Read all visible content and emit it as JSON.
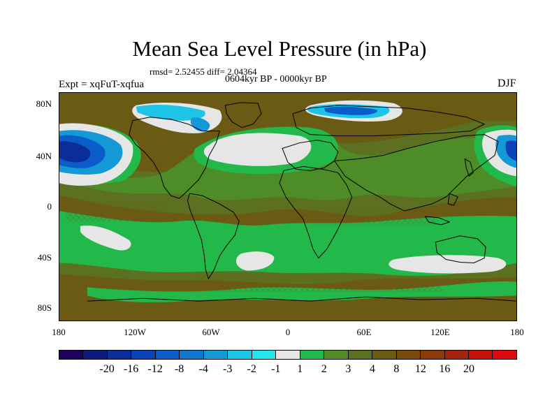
{
  "title": "Mean Sea Level Pressure (in hPa)",
  "stats": "rmsd= 2.52455 diff= 2.04364",
  "period": "0604kyr BP - 0000kyr BP",
  "experiment": "Expt = xqFuT-xqfua",
  "season": "DJF",
  "y_ticks": [
    "80N",
    "40N",
    "0",
    "40S",
    "80S"
  ],
  "x_ticks": [
    "180",
    "120W",
    "60W",
    "0",
    "60E",
    "120E",
    "180"
  ],
  "colorbar": {
    "colors": [
      "#1f0060",
      "#0a1a80",
      "#0a2d9a",
      "#0a43b5",
      "#0a5cc8",
      "#1077cf",
      "#1598d6",
      "#1ec4e6",
      "#25e6ec",
      "#e6e6e6",
      "#22b84a",
      "#4d8c26",
      "#5b7020",
      "#6a5a14",
      "#7a4a0c",
      "#8c3a0a",
      "#a3240a",
      "#c4140a",
      "#dc0a0a"
    ],
    "labels": [
      "-20",
      "-16",
      "-12",
      "-8",
      "-4",
      "-3",
      "-2",
      "-1",
      "1",
      "2",
      "3",
      "4",
      "8",
      "12",
      "16",
      "20"
    ]
  }
}
